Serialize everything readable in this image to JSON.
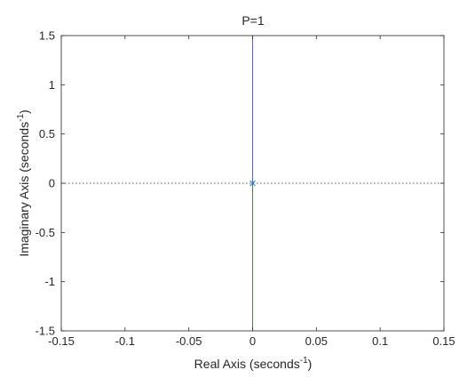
{
  "chart_data": {
    "type": "line",
    "title": "P=1",
    "xlabel": {
      "text": "Real Axis (seconds",
      "sup": "-1",
      "close": ")"
    },
    "ylabel": {
      "text": "Imaginary Axis (seconds",
      "sup": "-1",
      "close": ")"
    },
    "xlim": [
      -0.15,
      0.15
    ],
    "ylim": [
      -1.5,
      1.5
    ],
    "xticks": [
      -0.15,
      -0.1,
      -0.05,
      0,
      0.05,
      0.1,
      0.15
    ],
    "xtick_labels": [
      "-0.15",
      "-0.1",
      "-0.05",
      "0",
      "0.05",
      "0.1",
      "0.15"
    ],
    "yticks": [
      1.5,
      1,
      0.5,
      0,
      -0.5,
      -1,
      -1.5
    ],
    "ytick_labels": [
      "1.5",
      "1",
      "0.5",
      "0",
      "-0.5",
      "-1",
      "-1.5"
    ],
    "grid": false,
    "series": [
      {
        "color": "#4169e1",
        "x": [
          0,
          0
        ],
        "y": [
          0,
          1.5
        ]
      },
      {
        "color": "#3a8a3a",
        "x": [
          0,
          0
        ],
        "y": [
          0,
          -1.5
        ]
      }
    ],
    "poles": [
      {
        "x": 0,
        "y": 0,
        "marker": "x",
        "color": "#2a7fc0"
      }
    ],
    "reference_lines": [
      {
        "orientation": "horizontal",
        "value": 0,
        "style": "dotted",
        "color": "#555555"
      }
    ]
  }
}
